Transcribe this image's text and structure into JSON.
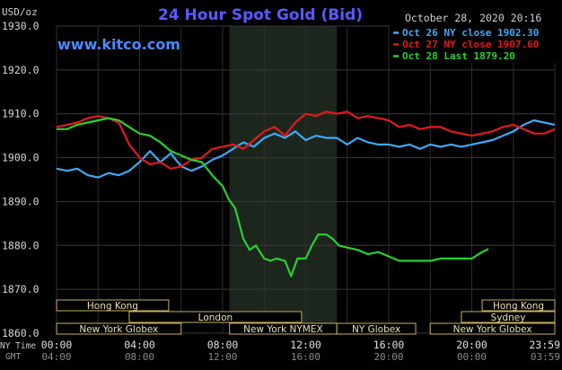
{
  "chart_data": {
    "type": "line",
    "title": "24 Hour Spot Gold (Bid)",
    "watermark": "www.kitco.com",
    "timestamp": "October 28, 2020 20:16",
    "y_unit": "USD/oz",
    "ylim": [
      1860,
      1930
    ],
    "y_ticks": [
      "1930.0",
      "1920.0",
      "1910.0",
      "1900.0",
      "1890.0",
      "1880.0",
      "1870.0",
      "1860.0"
    ],
    "y_tick_values": [
      1930,
      1920,
      1910,
      1900,
      1890,
      1880,
      1870,
      1860
    ],
    "x_row_label": "NY Time",
    "x_row2_label": "GMT",
    "x_ticks_ny": [
      "00:00",
      "04:00",
      "08:00",
      "12:00",
      "16:00",
      "20:00",
      "23:59"
    ],
    "x_ticks_gmt": [
      "04:00",
      "08:00",
      "12:00",
      "16:00",
      "20:00",
      "00:00",
      "03:59"
    ],
    "x_tick_hours": [
      0,
      4,
      8,
      12,
      16,
      20,
      24
    ],
    "grid": true,
    "legend_position": "top-right",
    "nymex_highlight_hours": [
      8.33,
      13.5
    ],
    "series": [
      {
        "name": "Oct 26 NY close 1902.30",
        "color": "#3fa9f5",
        "x": [
          0,
          0.5,
          1,
          1.5,
          2,
          2.5,
          3,
          3.5,
          4,
          4.5,
          5,
          5.5,
          6,
          6.5,
          7,
          7.5,
          8,
          8.5,
          9,
          9.5,
          10,
          10.5,
          11,
          11.5,
          12,
          12.5,
          13,
          13.5,
          14,
          14.5,
          15,
          15.5,
          16,
          16.5,
          17,
          17.5,
          18,
          18.5,
          19,
          19.5,
          20,
          20.5,
          21,
          21.5,
          22,
          22.5,
          23,
          23.5,
          24
        ],
        "y": [
          1897.5,
          1897,
          1897.5,
          1896,
          1895.5,
          1896.5,
          1896,
          1897,
          1899,
          1901.5,
          1899,
          1901,
          1898,
          1897,
          1898,
          1899.5,
          1900.5,
          1902,
          1903.5,
          1902.5,
          1904.5,
          1905.5,
          1904.5,
          1906,
          1904,
          1905,
          1904.5,
          1904.5,
          1903,
          1904.5,
          1903.5,
          1903,
          1903,
          1902.5,
          1903,
          1902,
          1903,
          1902.5,
          1903,
          1902.5,
          1903,
          1903.5,
          1904,
          1905,
          1906,
          1907.5,
          1908.5,
          1908,
          1907.5
        ]
      },
      {
        "name": "Oct 27 NY close 1907.60",
        "color": "#e41a1c",
        "x": [
          0,
          0.5,
          1,
          1.5,
          2,
          2.5,
          3,
          3.5,
          4,
          4.5,
          5,
          5.5,
          6,
          6.5,
          7,
          7.5,
          8,
          8.5,
          9,
          9.5,
          10,
          10.5,
          11,
          11.5,
          12,
          12.5,
          13,
          13.5,
          14,
          14.5,
          15,
          15.5,
          16,
          16.5,
          17,
          17.5,
          18,
          18.5,
          19,
          19.5,
          20,
          20.5,
          21,
          21.5,
          22,
          22.5,
          23,
          23.5,
          24
        ],
        "y": [
          1907,
          1907.5,
          1908,
          1909,
          1909.5,
          1909,
          1908,
          1903,
          1900,
          1898.5,
          1899,
          1897.5,
          1898,
          1899.5,
          1900,
          1902,
          1902.5,
          1903,
          1902,
          1904,
          1906,
          1907,
          1905,
          1908,
          1910,
          1909.5,
          1910.5,
          1910,
          1910.5,
          1909,
          1909.5,
          1909,
          1908.5,
          1907,
          1907.5,
          1906.5,
          1907,
          1907,
          1906,
          1905.5,
          1905,
          1905.5,
          1906,
          1907,
          1907.5,
          1906.5,
          1905.5,
          1905.5,
          1906.5
        ]
      },
      {
        "name": "Oct 28 Last 1879.20",
        "color": "#29d02f",
        "x": [
          0,
          0.5,
          1,
          1.5,
          2,
          2.5,
          3,
          3.5,
          4,
          4.5,
          5,
          5.5,
          6,
          6.5,
          7,
          7.5,
          8,
          8.3,
          8.6,
          9,
          9.3,
          9.6,
          10,
          10.3,
          10.6,
          11,
          11.3,
          11.6,
          12,
          12.3,
          12.6,
          13,
          13.3,
          13.6,
          14,
          14.5,
          15,
          15.5,
          16,
          16.5,
          17,
          17.5,
          18,
          18.5,
          19,
          19.5,
          20,
          20.5,
          20.8
        ],
        "y": [
          1906.5,
          1906.5,
          1907.5,
          1908,
          1908.5,
          1909,
          1908.5,
          1907,
          1905.5,
          1905,
          1903.5,
          1901.5,
          1900.5,
          1899.5,
          1899,
          1896,
          1893.5,
          1890.5,
          1888.5,
          1881.5,
          1879,
          1880,
          1877,
          1876.5,
          1877,
          1876.5,
          1873,
          1877,
          1877,
          1880,
          1882.5,
          1882.5,
          1881.5,
          1880,
          1879.5,
          1879,
          1878,
          1878.5,
          1877.5,
          1876.5,
          1876.5,
          1876.5,
          1876.5,
          1877,
          1877,
          1877,
          1877,
          1878.5,
          1879.2
        ]
      }
    ],
    "sessions": [
      {
        "label": "Hong Kong",
        "hours": [
          0,
          5.4
        ],
        "row": 0
      },
      {
        "label": "Hong Kong",
        "hours": [
          20.5,
          24
        ],
        "row": 0
      },
      {
        "label": "London",
        "hours": [
          3.5,
          11.8
        ],
        "row": 1
      },
      {
        "label": "Sydney",
        "hours": [
          19.5,
          24
        ],
        "row": 1
      },
      {
        "label": "New York Globex",
        "hours": [
          0,
          6
        ],
        "row": 2
      },
      {
        "label": "New York NYMEX",
        "hours": [
          8.33,
          13.5
        ],
        "row": 2
      },
      {
        "label": "NY Globex",
        "hours": [
          13.5,
          17.3
        ],
        "row": 2
      },
      {
        "label": "New York Globex",
        "hours": [
          18,
          24
        ],
        "row": 2
      }
    ]
  }
}
